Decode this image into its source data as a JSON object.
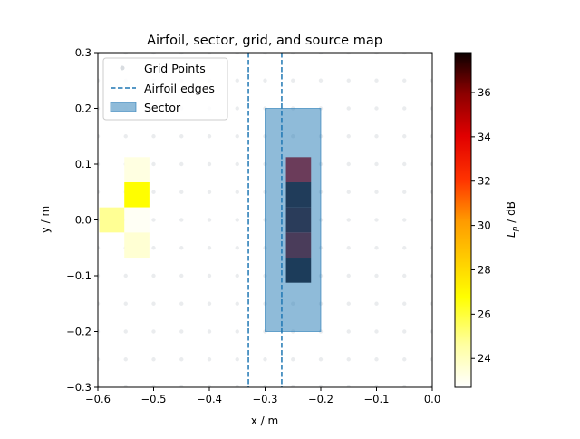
{
  "chart_data": {
    "type": "heatmap",
    "title": "Airfoil, sector, grid, and source map",
    "xlabel": "x / m",
    "ylabel": "y / m",
    "xlim": [
      -0.6,
      0.0
    ],
    "ylim": [
      -0.3,
      0.3
    ],
    "xticks": [
      "−0.6",
      "−0.5",
      "−0.4",
      "−0.3",
      "−0.2",
      "−0.1",
      "0.0"
    ],
    "yticks": [
      "−0.3",
      "−0.2",
      "−0.1",
      "0.0",
      "0.1",
      "0.2",
      "0.3"
    ],
    "xtick_values": [
      -0.6,
      -0.5,
      -0.4,
      -0.3,
      -0.2,
      -0.1,
      0.0
    ],
    "ytick_values": [
      -0.3,
      -0.2,
      -0.1,
      0.0,
      0.1,
      0.2,
      0.3
    ],
    "grid": false,
    "legend_position": "top-left",
    "legend": [
      "Grid Points",
      "Airfoil edges",
      "Sector"
    ],
    "grid_points": {
      "name": "Grid Points",
      "x": [
        -0.6,
        -0.55,
        -0.5,
        -0.45,
        -0.4,
        -0.35,
        -0.3,
        -0.25,
        -0.2,
        -0.15,
        -0.1,
        -0.05,
        0.0
      ],
      "y": [
        -0.3,
        -0.25,
        -0.2,
        -0.15,
        -0.1,
        -0.05,
        0.0,
        0.05,
        0.1,
        0.15,
        0.2,
        0.25,
        0.3
      ],
      "color": "#d8dce0"
    },
    "airfoil_edges": {
      "name": "Airfoil edges",
      "x": [
        -0.33,
        -0.27
      ],
      "color": "#1f77b4"
    },
    "sector": {
      "name": "Sector",
      "x": [
        -0.3,
        -0.2
      ],
      "y": [
        -0.2,
        0.2
      ],
      "color": "#1f77b4",
      "alpha": 0.5
    },
    "source_map": {
      "cell_size": 0.045,
      "cells": [
        {
          "x": -0.53,
          "y": 0.09,
          "value": 23.3
        },
        {
          "x": -0.53,
          "y": 0.045,
          "value": 26.8
        },
        {
          "x": -0.53,
          "y": 0.0,
          "value": 22.9
        },
        {
          "x": -0.53,
          "y": -0.045,
          "value": 23.6
        },
        {
          "x": -0.575,
          "y": 0.0,
          "value": 24.8
        },
        {
          "x": -0.24,
          "y": 0.09,
          "value": 35.0
        },
        {
          "x": -0.24,
          "y": 0.045,
          "value": 37.5
        },
        {
          "x": -0.24,
          "y": 0.0,
          "value": 37.2
        },
        {
          "x": -0.24,
          "y": -0.045,
          "value": 36.3
        },
        {
          "x": -0.24,
          "y": -0.09,
          "value": 37.6
        }
      ]
    },
    "colorbar": {
      "label": "L_p / dB",
      "label_main": "L",
      "label_sub": "p",
      "label_rest": " / dB",
      "min": 22.7,
      "max": 37.8,
      "ticks": [
        24,
        26,
        28,
        30,
        32,
        34,
        36
      ],
      "tick_labels": [
        "24",
        "26",
        "28",
        "30",
        "32",
        "34",
        "36"
      ],
      "colormap": "hot_r"
    }
  }
}
